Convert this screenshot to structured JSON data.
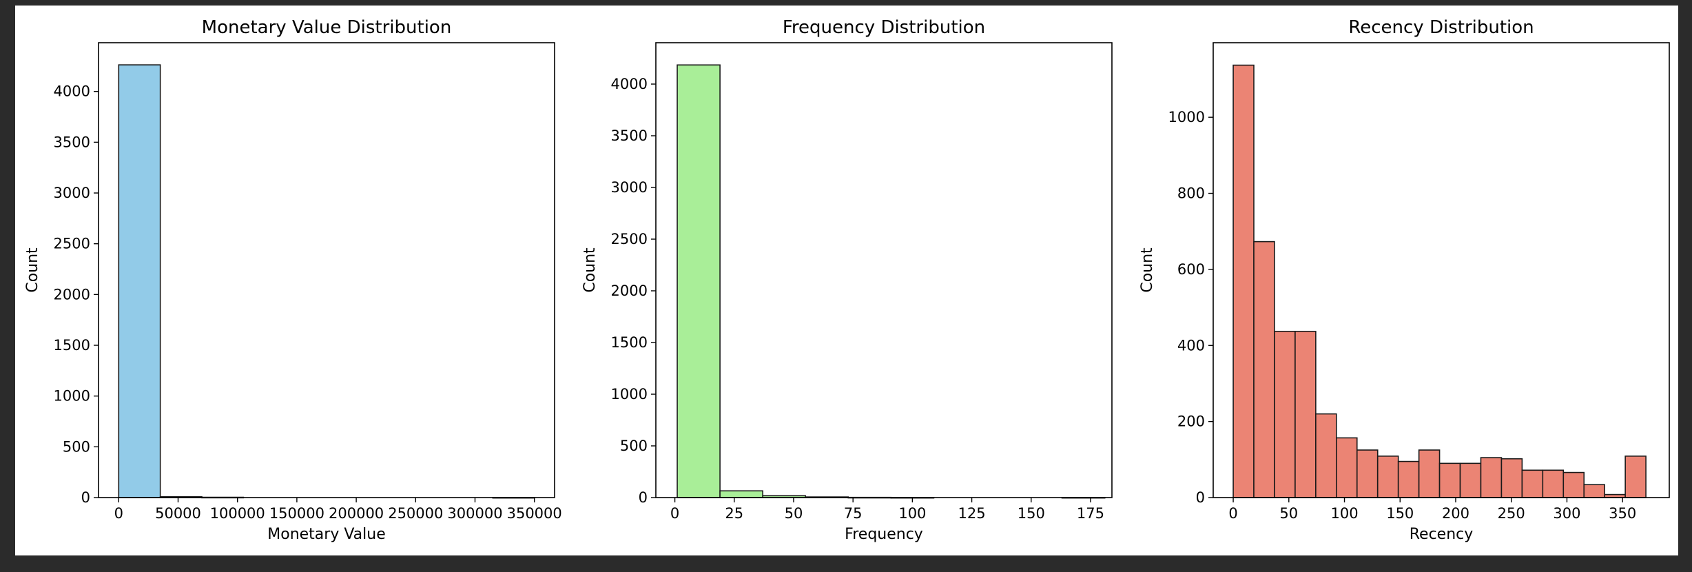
{
  "chart_data": [
    {
      "type": "bar",
      "title": "Monetary Value Distribution",
      "xlabel": "Monetary Value",
      "ylabel": "Count",
      "xlim": [
        -17000,
        367000
      ],
      "ylim": [
        0,
        4480
      ],
      "xticks": [
        0,
        50000,
        100000,
        150000,
        200000,
        250000,
        300000,
        350000
      ],
      "yticks": [
        0,
        500,
        1000,
        1500,
        2000,
        2500,
        3000,
        3500,
        4000
      ],
      "bin_edges": [
        0,
        35000,
        70000,
        105000,
        140000,
        175000,
        210000,
        245000,
        280000,
        315000,
        350000
      ],
      "values": [
        4262,
        8,
        3,
        0,
        0,
        0,
        0,
        0,
        0,
        1
      ],
      "color": "#92cbe8"
    },
    {
      "type": "bar",
      "title": "Frequency Distribution",
      "xlabel": "Frequency",
      "ylabel": "Count",
      "xlim": [
        -8,
        184
      ],
      "ylim": [
        0,
        4400
      ],
      "xticks": [
        0,
        25,
        50,
        75,
        100,
        125,
        150,
        175
      ],
      "yticks": [
        0,
        500,
        1000,
        1500,
        2000,
        2500,
        3000,
        3500,
        4000
      ],
      "bin_edges": [
        1,
        19,
        37,
        55,
        73,
        91,
        109,
        127,
        145,
        163,
        181
      ],
      "values": [
        4185,
        65,
        18,
        6,
        2,
        1,
        0,
        0,
        0,
        1
      ],
      "color": "#a9ee98"
    },
    {
      "type": "bar",
      "title": "Recency Distribution",
      "xlabel": "Recency",
      "ylabel": "Count",
      "xlim": [
        -18,
        392
      ],
      "ylim": [
        0,
        1196
      ],
      "xticks": [
        0,
        50,
        100,
        150,
        200,
        250,
        300,
        350
      ],
      "yticks": [
        0,
        200,
        400,
        600,
        800,
        1000
      ],
      "bin_edges": [
        0,
        18.55,
        37.1,
        55.65,
        74.2,
        92.75,
        111.3,
        129.85,
        148.4,
        166.95,
        185.5,
        204.05,
        222.6,
        241.15,
        259.7,
        278.25,
        296.8,
        315.35,
        333.9,
        352.45,
        371
      ],
      "values": [
        1137,
        673,
        437,
        437,
        220,
        157,
        125,
        109,
        95,
        125,
        90,
        90,
        105,
        102,
        72,
        72,
        66,
        34,
        8,
        109
      ],
      "color": "#eb8474"
    }
  ]
}
